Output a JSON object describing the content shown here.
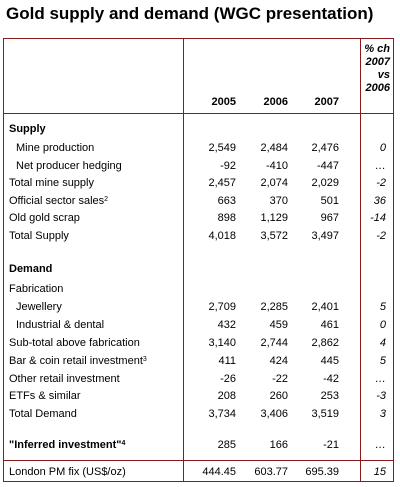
{
  "title": "Gold supply and demand (WGC presentation)",
  "columns": {
    "y1": "2005",
    "y2": "2006",
    "y3": "2007",
    "pct": [
      "% ch",
      "2007",
      "vs",
      "2006"
    ]
  },
  "supply_heading": "Supply",
  "demand_heading": "Demand",
  "rows": [
    {
      "label": "Mine production",
      "v1": "2,549",
      "v2": "2,484",
      "v3": "2,476",
      "pct": "0"
    },
    {
      "label": "Net producer hedging",
      "v1": "-92",
      "v2": "-410",
      "v3": "-447",
      "pct": "…"
    },
    {
      "label": "Total mine supply",
      "v1": "2,457",
      "v2": "2,074",
      "v3": "2,029",
      "pct": "-2"
    },
    {
      "label": "Official sector sales",
      "sup": "2",
      "v1": "663",
      "v2": "370",
      "v3": "501",
      "pct": "36"
    },
    {
      "label": "Old gold scrap",
      "v1": "898",
      "v2": "1,129",
      "v3": "967",
      "pct": "-14"
    },
    {
      "label": "Total Supply",
      "v1": "4,018",
      "v2": "3,572",
      "v3": "3,497",
      "pct": "-2"
    },
    {
      "label": "Fabrication",
      "v1": "",
      "v2": "",
      "v3": "",
      "pct": ""
    },
    {
      "label": "Jewellery",
      "v1": "2,709",
      "v2": "2,285",
      "v3": "2,401",
      "pct": "5"
    },
    {
      "label": "Industrial & dental",
      "v1": "432",
      "v2": "459",
      "v3": "461",
      "pct": "0"
    },
    {
      "label": "Sub-total above fabrication",
      "v1": "3,140",
      "v2": "2,744",
      "v3": "2,862",
      "pct": "4"
    },
    {
      "label": "Bar & coin retail investment",
      "sup": "3",
      "v1": "411",
      "v2": "424",
      "v3": "445",
      "pct": "5"
    },
    {
      "label": "Other retail investment",
      "v1": "-26",
      "v2": "-22",
      "v3": "-42",
      "pct": "…"
    },
    {
      "label": "ETFs & similar",
      "v1": "208",
      "v2": "260",
      "v3": "253",
      "pct": "-3"
    },
    {
      "label": "Total Demand",
      "v1": "3,734",
      "v2": "3,406",
      "v3": "3,519",
      "pct": "3"
    },
    {
      "label": "\"Inferred investment\"",
      "sup": "4",
      "v1": "285",
      "v2": "166",
      "v3": "-21",
      "pct": "…"
    },
    {
      "label": "London PM fix (US$/oz)",
      "v1": "444.45",
      "v2": "603.77",
      "v3": "695.39",
      "pct": "15"
    }
  ]
}
